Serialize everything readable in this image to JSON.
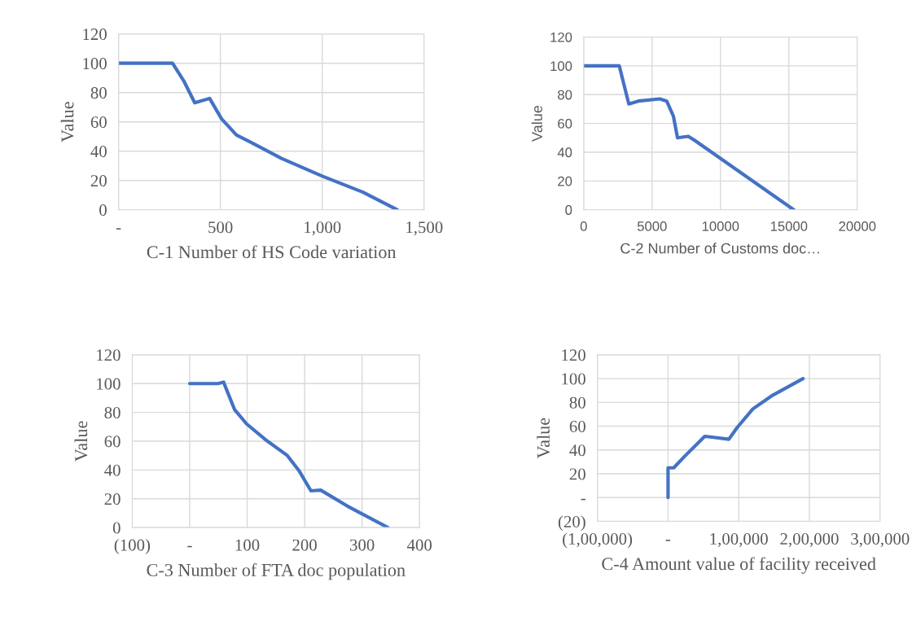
{
  "chart_data": [
    {
      "type": "line",
      "xlabel": "C-1 Number of HS Code variation",
      "ylabel": "Value",
      "grid": true,
      "xlim": [
        0,
        1500
      ],
      "xticks": [
        {
          "value": 0,
          "label": "-"
        },
        500,
        {
          "value": 1000,
          "label": "1,000"
        },
        {
          "value": 1500,
          "label": "1,500"
        }
      ],
      "ylim": [
        0,
        120
      ],
      "yticks": [
        0,
        20,
        40,
        60,
        80,
        100,
        120
      ],
      "series": [
        {
          "color": "#4472c4",
          "x": [
            0,
            265,
            320,
            374,
            447,
            506,
            579,
            650,
            800,
            1000,
            1200,
            1368
          ],
          "values": [
            100,
            100,
            88,
            73,
            76,
            62,
            51,
            46,
            35,
            23,
            12,
            0
          ]
        }
      ]
    },
    {
      "type": "line",
      "xlabel": "C-2 Number of Customs doc…",
      "ylabel": "Value",
      "grid": true,
      "xlim": [
        0,
        20000
      ],
      "xticks": [
        0,
        5000,
        10000,
        15000,
        20000
      ],
      "ylim": [
        0,
        120
      ],
      "yticks": [
        0,
        20,
        40,
        60,
        80,
        100,
        120
      ],
      "series": [
        {
          "color": "#4472c4",
          "x": [
            0,
            2600,
            3300,
            4000,
            5570,
            6070,
            6560,
            6860,
            7650,
            8140,
            15360
          ],
          "values": [
            100,
            100,
            73.5,
            75.5,
            77,
            75.5,
            65,
            50,
            51,
            48,
            0
          ]
        }
      ]
    },
    {
      "type": "line",
      "xlabel": "C-3 Number of FTA doc population",
      "ylabel": "Value",
      "grid": true,
      "xlim": [
        -100,
        400
      ],
      "xticks": [
        {
          "value": -100,
          "label": "(100)"
        },
        {
          "value": 0,
          "label": "-"
        },
        100,
        200,
        300,
        400
      ],
      "ylim": [
        0,
        120
      ],
      "yticks": [
        0,
        20,
        40,
        60,
        80,
        100,
        120
      ],
      "series": [
        {
          "color": "#4472c4",
          "x": [
            0,
            49,
            59,
            68,
            78,
            99,
            132,
            170,
            191,
            211,
            228,
            274,
            345
          ],
          "values": [
            100,
            100,
            101,
            92,
            82,
            72,
            61,
            50,
            39,
            25.5,
            26,
            15,
            0
          ]
        }
      ]
    },
    {
      "type": "line",
      "xlabel": "C-4 Amount value of facility received",
      "ylabel": "Value",
      "grid": true,
      "xlim": [
        -100000,
        300000
      ],
      "xticks": [
        {
          "value": -100000,
          "label": "(1,00,000)"
        },
        {
          "value": 0,
          "label": "-"
        },
        {
          "value": 100000,
          "label": "1,00,000"
        },
        {
          "value": 200000,
          "label": "2,00,000"
        },
        {
          "value": 300000,
          "label": "3,00,000"
        }
      ],
      "ylim": [
        -20,
        120
      ],
      "yticks": [
        {
          "value": -20,
          "label": "(20)"
        },
        {
          "value": 0,
          "label": "-"
        },
        20,
        40,
        60,
        80,
        100,
        120
      ],
      "series": [
        {
          "color": "#4472c4",
          "x": [
            0,
            0,
            4400,
            8000,
            24000,
            52000,
            66500,
            86000,
            98000,
            120000,
            148000,
            191000
          ],
          "values": [
            0,
            25,
            25,
            25,
            35,
            51.5,
            50.5,
            49,
            59,
            74.5,
            86,
            100
          ]
        }
      ]
    }
  ]
}
